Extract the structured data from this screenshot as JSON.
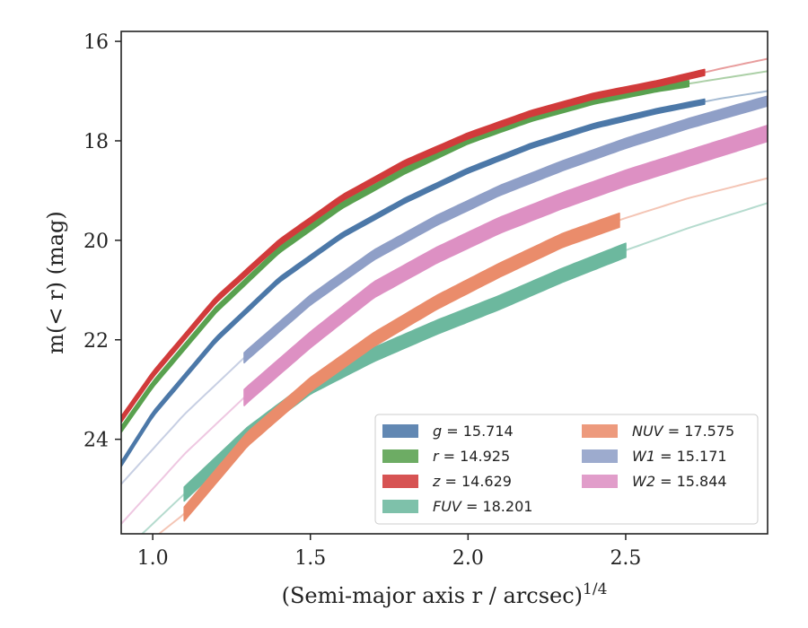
{
  "chart_data": {
    "type": "line",
    "xlabel": "(Semi-major axis r / arcsec)",
    "xlabel_sup": "1/4",
    "ylabel": "m(< r) (mag)",
    "xlim": [
      0.9,
      2.95
    ],
    "ylim": [
      25.9,
      15.8
    ],
    "y_inverted": true,
    "xticks": [
      1.0,
      1.5,
      2.0,
      2.5
    ],
    "xtick_labels": [
      "1.0",
      "1.5",
      "2.0",
      "2.5"
    ],
    "yticks": [
      16,
      18,
      20,
      22,
      24
    ],
    "ytick_labels": [
      "16",
      "18",
      "20",
      "22",
      "24"
    ],
    "legend_position": "bottom-right",
    "legend_columns": 2,
    "series": [
      {
        "name": "g = 15.714",
        "band": "g",
        "value": "15.714",
        "color": "#4c78a8",
        "x": [
          0.9,
          1.0,
          1.2,
          1.4,
          1.6,
          1.8,
          2.0,
          2.2,
          2.4,
          2.6,
          2.8,
          2.95
        ],
        "y": [
          24.5,
          23.5,
          22.0,
          20.8,
          19.9,
          19.2,
          18.6,
          18.1,
          17.7,
          17.4,
          17.15,
          17.0
        ],
        "solid_range": [
          0.9,
          2.75
        ],
        "half_width": 0.05
      },
      {
        "name": "r = 14.925",
        "band": "r",
        "value": "14.925",
        "color": "#59a14f",
        "x": [
          0.9,
          1.0,
          1.2,
          1.4,
          1.6,
          1.8,
          2.0,
          2.2,
          2.4,
          2.6,
          2.8,
          2.95
        ],
        "y": [
          23.8,
          22.9,
          21.4,
          20.2,
          19.3,
          18.6,
          18.0,
          17.55,
          17.2,
          16.95,
          16.75,
          16.6
        ],
        "solid_range": [
          0.9,
          2.7
        ],
        "half_width": 0.06
      },
      {
        "name": "z = 14.629",
        "band": "z",
        "value": "14.629",
        "color": "#d13b3b",
        "x": [
          0.9,
          1.0,
          1.2,
          1.4,
          1.6,
          1.8,
          2.0,
          2.2,
          2.4,
          2.6,
          2.8,
          2.95
        ],
        "y": [
          23.6,
          22.7,
          21.2,
          20.05,
          19.15,
          18.45,
          17.9,
          17.45,
          17.1,
          16.85,
          16.55,
          16.35
        ],
        "solid_range": [
          0.9,
          2.75
        ],
        "half_width": 0.06
      },
      {
        "name": "FUV = 18.201",
        "band": "FUV",
        "value": "18.201",
        "color": "#6cb89e",
        "x": [
          0.9,
          1.1,
          1.3,
          1.5,
          1.7,
          1.9,
          2.1,
          2.3,
          2.5,
          2.7,
          2.95
        ],
        "y": [
          26.3,
          25.1,
          23.9,
          22.95,
          22.3,
          21.75,
          21.25,
          20.7,
          20.2,
          19.75,
          19.25
        ],
        "solid_range": [
          1.1,
          2.5
        ],
        "half_width": 0.14
      },
      {
        "name": "NUV = 17.575",
        "band": "NUV",
        "value": "17.575",
        "color": "#ea8c6b",
        "x": [
          0.9,
          1.1,
          1.3,
          1.5,
          1.7,
          1.9,
          2.1,
          2.3,
          2.5,
          2.7,
          2.95
        ],
        "y": [
          26.5,
          25.5,
          24.0,
          22.9,
          22.0,
          21.25,
          20.6,
          20.0,
          19.55,
          19.15,
          18.75
        ],
        "solid_range": [
          1.1,
          2.48
        ],
        "half_width": 0.14
      },
      {
        "name": "W1 = 15.171",
        "band": "W1",
        "value": "15.171",
        "color": "#8f9fc7",
        "x": [
          0.9,
          1.1,
          1.3,
          1.5,
          1.7,
          1.9,
          2.1,
          2.3,
          2.5,
          2.7,
          2.95
        ],
        "y": [
          24.9,
          23.5,
          22.3,
          21.2,
          20.3,
          19.6,
          19.0,
          18.5,
          18.05,
          17.65,
          17.2
        ],
        "solid_range": [
          1.29,
          2.95
        ],
        "half_width": 0.1
      },
      {
        "name": "W2 = 15.844",
        "band": "W2",
        "value": "15.844",
        "color": "#dd90c3",
        "x": [
          0.9,
          1.1,
          1.3,
          1.5,
          1.7,
          1.9,
          2.1,
          2.3,
          2.5,
          2.7,
          2.95
        ],
        "y": [
          25.7,
          24.3,
          23.1,
          22.0,
          21.0,
          20.3,
          19.7,
          19.2,
          18.75,
          18.35,
          17.85
        ],
        "solid_range": [
          1.29,
          2.95
        ],
        "half_width": 0.16
      }
    ]
  }
}
